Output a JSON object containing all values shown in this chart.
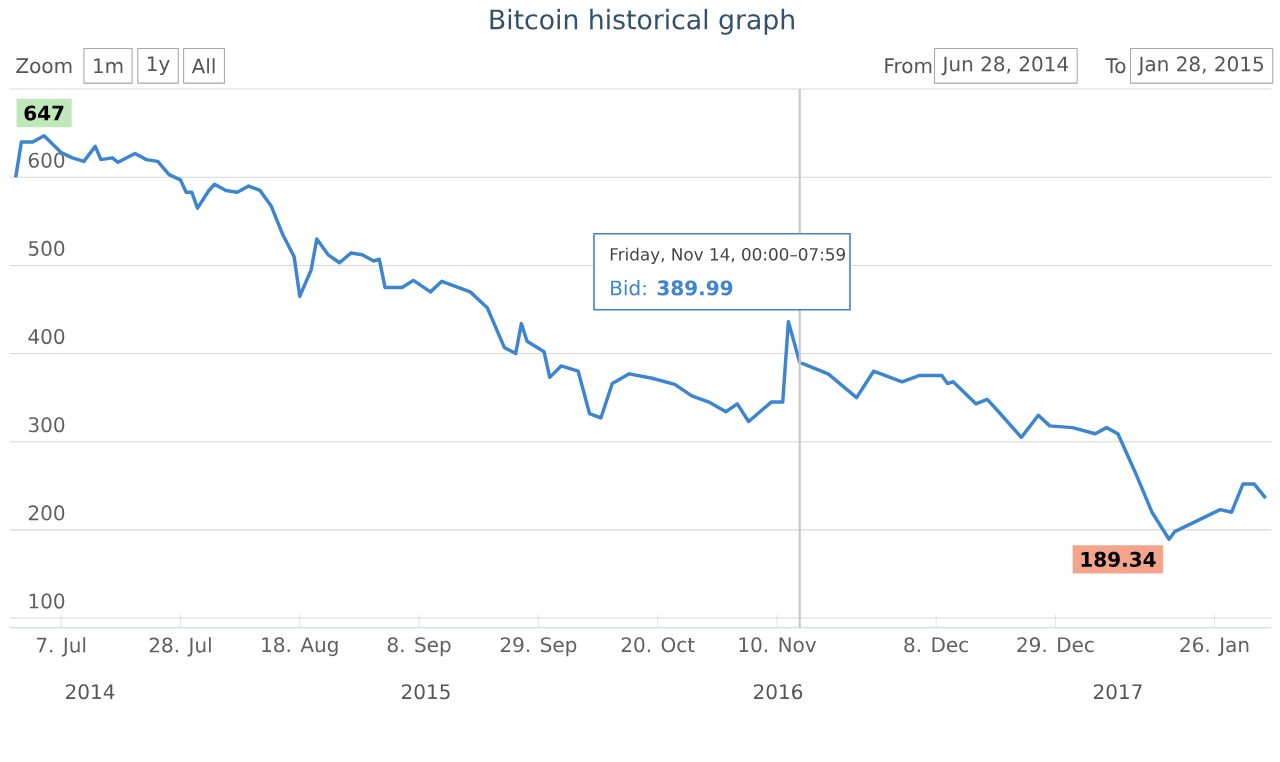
{
  "chart_data": {
    "type": "line",
    "title": "Bitcoin historical graph",
    "x": [
      "2014-06-29",
      "2014-06-30",
      "2014-07-02",
      "2014-07-04",
      "2014-07-07",
      "2014-07-09",
      "2014-07-11",
      "2014-07-13",
      "2014-07-14",
      "2014-07-16",
      "2014-07-17",
      "2014-07-20",
      "2014-07-22",
      "2014-07-24",
      "2014-07-26",
      "2014-07-28",
      "2014-07-29",
      "2014-07-30",
      "2014-07-31",
      "2014-08-02",
      "2014-08-03",
      "2014-08-05",
      "2014-08-07",
      "2014-08-09",
      "2014-08-11",
      "2014-08-13",
      "2014-08-15",
      "2014-08-17",
      "2014-08-18",
      "2014-08-20",
      "2014-08-21",
      "2014-08-23",
      "2014-08-25",
      "2014-08-27",
      "2014-08-29",
      "2014-08-31",
      "2014-09-01",
      "2014-09-02",
      "2014-09-05",
      "2014-09-07",
      "2014-09-10",
      "2014-09-12",
      "2014-09-17",
      "2014-09-20",
      "2014-09-23",
      "2014-09-25",
      "2014-09-26",
      "2014-09-27",
      "2014-09-30",
      "2014-10-01",
      "2014-10-03",
      "2014-10-06",
      "2014-10-08",
      "2014-10-10",
      "2014-10-12",
      "2014-10-15",
      "2014-10-19",
      "2014-10-23",
      "2014-10-26",
      "2014-10-29",
      "2014-11-01",
      "2014-11-03",
      "2014-11-05",
      "2014-11-07",
      "2014-11-09",
      "2014-11-11",
      "2014-11-12",
      "2014-11-14",
      "2014-11-19",
      "2014-11-24",
      "2014-11-27",
      "2014-12-02",
      "2014-12-05",
      "2014-12-09",
      "2014-12-10",
      "2014-12-11",
      "2014-12-15",
      "2014-12-17",
      "2014-12-19",
      "2014-12-23",
      "2014-12-26",
      "2014-12-28",
      "2015-01-01",
      "2015-01-05",
      "2015-01-07",
      "2015-01-09",
      "2015-01-12",
      "2015-01-15",
      "2015-01-18",
      "2015-01-19",
      "2015-01-27",
      "2015-01-29",
      "2015-01-31",
      "2015-02-02",
      "2015-02-04"
    ],
    "values": [
      600,
      640,
      640,
      647,
      628,
      622,
      618,
      635,
      620,
      622,
      617,
      627,
      620,
      618,
      603,
      597,
      583,
      583,
      565,
      585,
      592,
      585,
      583,
      590,
      585,
      567,
      535,
      510,
      465,
      495,
      530,
      512,
      503,
      514,
      512,
      505,
      507,
      475,
      475,
      483,
      470,
      482,
      470,
      452,
      407,
      400,
      434,
      414,
      402,
      373,
      386,
      380,
      332,
      327,
      366,
      377,
      372,
      365,
      352,
      345,
      334,
      343,
      323,
      334,
      345,
      345,
      436,
      389.99,
      377,
      350,
      380,
      368,
      375,
      375,
      366,
      368,
      343,
      348,
      334,
      305,
      330,
      318,
      316,
      309,
      316,
      309,
      266,
      220,
      189.34,
      198,
      223,
      220,
      252,
      252,
      236
    ],
    "color": "#3d85d0",
    "xlim": [
      "2014-06-28",
      "2015-02-05"
    ],
    "xticks": [
      {
        "value": "2014-07-07",
        "label": "7. Jul"
      },
      {
        "value": "2014-07-28",
        "label": "28. Jul"
      },
      {
        "value": "2014-08-18",
        "label": "18. Aug"
      },
      {
        "value": "2014-09-08",
        "label": "8. Sep"
      },
      {
        "value": "2014-09-29",
        "label": "29. Sep"
      },
      {
        "value": "2014-10-20",
        "label": "20. Oct"
      },
      {
        "value": "2014-11-10",
        "label": "10. Nov"
      },
      {
        "value": "2014-12-08",
        "label": "8. Dec"
      },
      {
        "value": "2014-12-29",
        "label": "29. Dec"
      },
      {
        "value": "2015-01-26",
        "label": "26. Jan"
      }
    ],
    "ylim": [
      89,
      700
    ],
    "yticks": [
      100,
      200,
      300,
      400,
      500,
      600,
      {
        "value": 700,
        "label": null
      }
    ],
    "grid": "y",
    "ref_lines": [
      {
        "axis": "x",
        "value": "2014-11-14",
        "color": "#c8c8c8"
      }
    ],
    "annotations": [
      {
        "text": "647",
        "x": "2014-07-04",
        "y": 647
      },
      {
        "text": "189.34",
        "x": "2015-01-18",
        "y": 189.34
      },
      "Friday, Nov 14, 00:00–07:59",
      "Bid: **389.99**",
      "Zoom",
      "1m",
      "1y",
      "All",
      "From",
      "Jun 28, 2014",
      "To",
      "Jan 28, 2015",
      "2014",
      "2015",
      "2016",
      "2017"
    ]
  }
}
